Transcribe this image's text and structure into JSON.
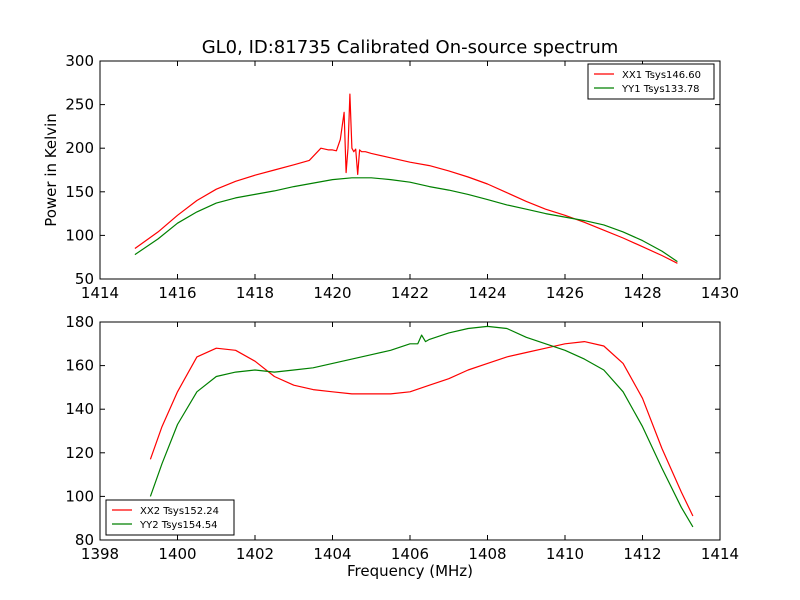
{
  "figure": {
    "title": "GL0, ID:81735 Calibrated On-source spectrum"
  },
  "chart_data": [
    {
      "type": "line",
      "title": "GL0, ID:81735 Calibrated On-source spectrum",
      "xlabel": "",
      "ylabel": "Power in Kelvin",
      "xlim": [
        1414,
        1430
      ],
      "ylim": [
        50,
        300
      ],
      "xticks": [
        1414,
        1416,
        1418,
        1420,
        1422,
        1424,
        1426,
        1428,
        1430
      ],
      "yticks": [
        50,
        100,
        150,
        200,
        250,
        300
      ],
      "grid": false,
      "legend_position": "top-right",
      "series": [
        {
          "name": "XX1 Tsys146.60",
          "color": "#ff0000",
          "x": [
            1414.9,
            1415.5,
            1416.0,
            1416.5,
            1417.0,
            1417.5,
            1418.0,
            1418.5,
            1419.0,
            1419.4,
            1419.7,
            1419.9,
            1420.0,
            1420.1,
            1420.2,
            1420.3,
            1420.35,
            1420.4,
            1420.45,
            1420.5,
            1420.55,
            1420.6,
            1420.65,
            1420.7,
            1420.75,
            1420.85,
            1421.0,
            1421.5,
            1422.0,
            1422.5,
            1423.0,
            1423.5,
            1424.0,
            1424.5,
            1425.0,
            1425.5,
            1426.0,
            1426.5,
            1427.0,
            1427.5,
            1428.0,
            1428.5,
            1428.9
          ],
          "values": [
            85,
            104,
            123,
            140,
            153,
            162,
            169,
            175,
            181,
            186,
            200,
            198,
            198,
            197,
            210,
            241,
            172,
            200,
            262,
            200,
            196,
            199,
            170,
            198,
            196,
            196,
            194,
            189,
            184,
            180,
            174,
            167,
            159,
            149,
            139,
            130,
            123,
            115,
            106,
            97,
            87,
            77,
            68
          ]
        },
        {
          "name": "YY1 Tsys133.78",
          "color": "#008000",
          "x": [
            1414.9,
            1415.5,
            1416.0,
            1416.5,
            1417.0,
            1417.5,
            1418.0,
            1418.5,
            1419.0,
            1419.5,
            1420.0,
            1420.5,
            1421.0,
            1421.5,
            1422.0,
            1422.5,
            1423.0,
            1423.5,
            1424.0,
            1424.5,
            1425.0,
            1425.5,
            1426.0,
            1426.5,
            1427.0,
            1427.5,
            1428.0,
            1428.5,
            1428.9
          ],
          "values": [
            78,
            96,
            114,
            127,
            137,
            143,
            147,
            151,
            156,
            160,
            164,
            166,
            166,
            164,
            161,
            156,
            152,
            147,
            141,
            135,
            130,
            125,
            121,
            117,
            112,
            104,
            94,
            82,
            70
          ]
        }
      ]
    },
    {
      "type": "line",
      "title": "",
      "xlabel": "Frequency (MHz)",
      "ylabel": "",
      "xlim": [
        1398,
        1414
      ],
      "ylim": [
        80,
        180
      ],
      "xticks": [
        1398,
        1400,
        1402,
        1404,
        1406,
        1408,
        1410,
        1412,
        1414
      ],
      "yticks": [
        80,
        100,
        120,
        140,
        160,
        180
      ],
      "grid": false,
      "legend_position": "bottom-left",
      "series": [
        {
          "name": "XX2 Tsys152.24",
          "color": "#ff0000",
          "x": [
            1399.3,
            1399.6,
            1400.0,
            1400.5,
            1401.0,
            1401.5,
            1402.0,
            1402.5,
            1403.0,
            1403.5,
            1404.0,
            1404.5,
            1405.0,
            1405.5,
            1406.0,
            1406.5,
            1407.0,
            1407.5,
            1408.0,
            1408.5,
            1409.0,
            1409.5,
            1410.0,
            1410.5,
            1411.0,
            1411.5,
            1412.0,
            1412.5,
            1413.0,
            1413.3
          ],
          "values": [
            117,
            132,
            148,
            164,
            168,
            167,
            162,
            155,
            151,
            149,
            148,
            147,
            147,
            147,
            148,
            151,
            154,
            158,
            161,
            164,
            166,
            168,
            170,
            171,
            169,
            161,
            145,
            122,
            102,
            91
          ]
        },
        {
          "name": "YY2 Tsys154.54",
          "color": "#008000",
          "x": [
            1399.3,
            1399.6,
            1400.0,
            1400.5,
            1401.0,
            1401.5,
            1402.0,
            1402.5,
            1403.0,
            1403.5,
            1404.0,
            1404.5,
            1405.0,
            1405.5,
            1406.0,
            1406.2,
            1406.3,
            1406.4,
            1406.5,
            1407.0,
            1407.5,
            1408.0,
            1408.5,
            1409.0,
            1409.5,
            1410.0,
            1410.5,
            1411.0,
            1411.5,
            1412.0,
            1412.5,
            1413.0,
            1413.3
          ],
          "values": [
            100,
            115,
            133,
            148,
            155,
            157,
            158,
            157,
            158,
            159,
            161,
            163,
            165,
            167,
            170,
            170,
            174,
            171,
            172,
            175,
            177,
            178,
            177,
            173,
            170,
            167,
            163,
            158,
            148,
            132,
            113,
            95,
            86
          ]
        }
      ]
    }
  ]
}
